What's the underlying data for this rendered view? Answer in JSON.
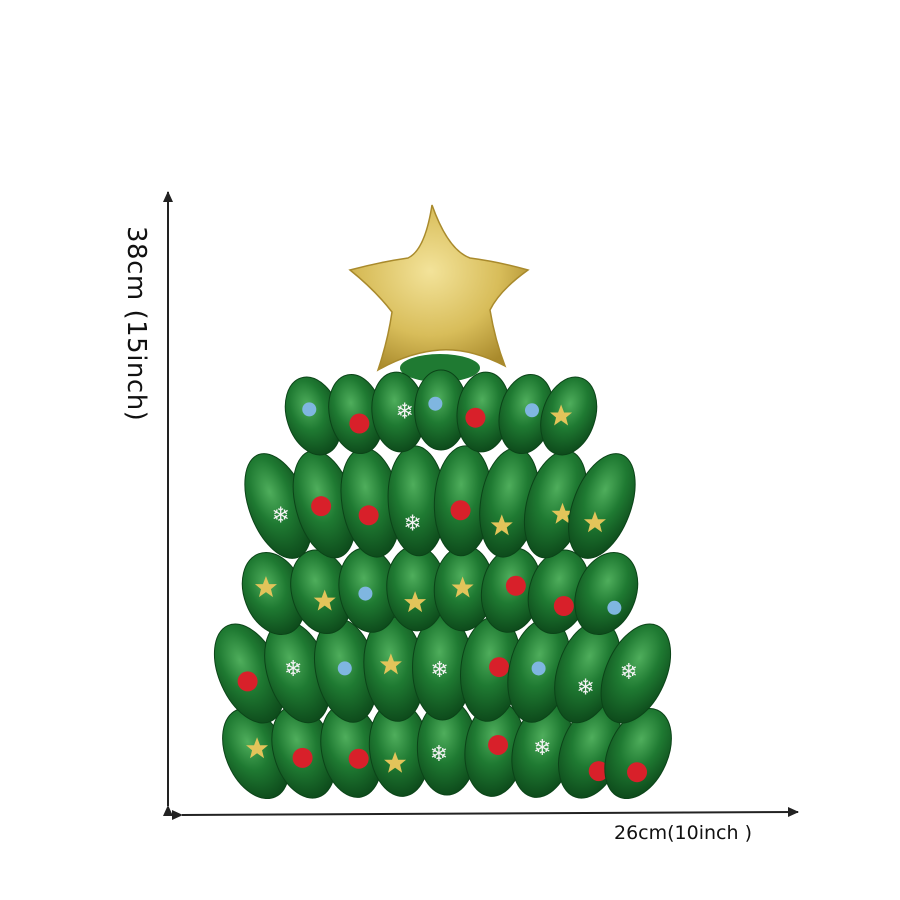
{
  "dimensions": {
    "height_label": "38cm (15inch)",
    "width_label": "26cm(10inch )"
  },
  "colors": {
    "foil_green": "#1f7a32",
    "foil_green_dark": "#0d4d1c",
    "star_gold": "#d8bd5a",
    "ornament_red": "#d8202a",
    "arrow": "#222222"
  }
}
